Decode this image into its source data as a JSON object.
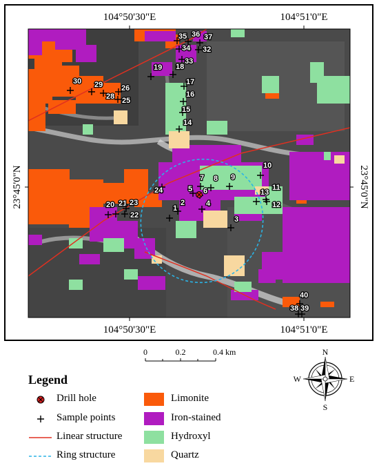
{
  "coords": {
    "top_left": "104°50'30\"E",
    "top_right": "104°51'0\"E",
    "bottom_left": "104°50'30\"E",
    "bottom_right": "104°51'0\"E",
    "left": "23°45'0\"N",
    "right": "23°45'0\"N"
  },
  "scale_bar": {
    "ticks": [
      "0",
      "0.2",
      "0.4 km"
    ]
  },
  "compass": {
    "n": "N",
    "s": "S",
    "e": "E",
    "w": "W"
  },
  "legend": {
    "title": "Legend",
    "items": [
      {
        "label": "Drill hole",
        "symbol": "drill-hole"
      },
      {
        "label": "Sample points",
        "symbol": "plus"
      },
      {
        "label": "Linear structure",
        "symbol": "red-line",
        "color": "#e03020"
      },
      {
        "label": "Ring structure",
        "symbol": "cyan-dashed",
        "color": "#2bb4e6"
      },
      {
        "label": "Limonite",
        "symbol": "patch",
        "color": "#fa5a0a"
      },
      {
        "label": "Iron-stained",
        "symbol": "patch",
        "color": "#b01cc0"
      },
      {
        "label": "Hydroxyl",
        "symbol": "patch",
        "color": "#8ee0a0"
      },
      {
        "label": "Quartz",
        "symbol": "patch",
        "color": "#f8d8a0"
      }
    ]
  },
  "samples": [
    {
      "label": "1"
    },
    {
      "label": "2"
    },
    {
      "label": "3"
    },
    {
      "label": "4"
    },
    {
      "label": "5"
    },
    {
      "label": "6"
    },
    {
      "label": "7"
    },
    {
      "label": "8"
    },
    {
      "label": "9"
    },
    {
      "label": "10"
    },
    {
      "label": "11"
    },
    {
      "label": "12"
    },
    {
      "label": "13"
    },
    {
      "label": "14"
    },
    {
      "label": "15"
    },
    {
      "label": "16"
    },
    {
      "label": "17"
    },
    {
      "label": "18"
    },
    {
      "label": "19"
    },
    {
      "label": "20"
    },
    {
      "label": "21"
    },
    {
      "label": "22"
    },
    {
      "label": "23"
    },
    {
      "label": "24"
    },
    {
      "label": "25"
    },
    {
      "label": "26"
    },
    {
      "label": "28"
    },
    {
      "label": "29"
    },
    {
      "label": "30"
    },
    {
      "label": "32"
    },
    {
      "label": "33"
    },
    {
      "label": "34"
    },
    {
      "label": "35"
    },
    {
      "label": "36"
    },
    {
      "label": "37"
    },
    {
      "label": "38"
    },
    {
      "label": "39"
    },
    {
      "label": "40"
    }
  ]
}
